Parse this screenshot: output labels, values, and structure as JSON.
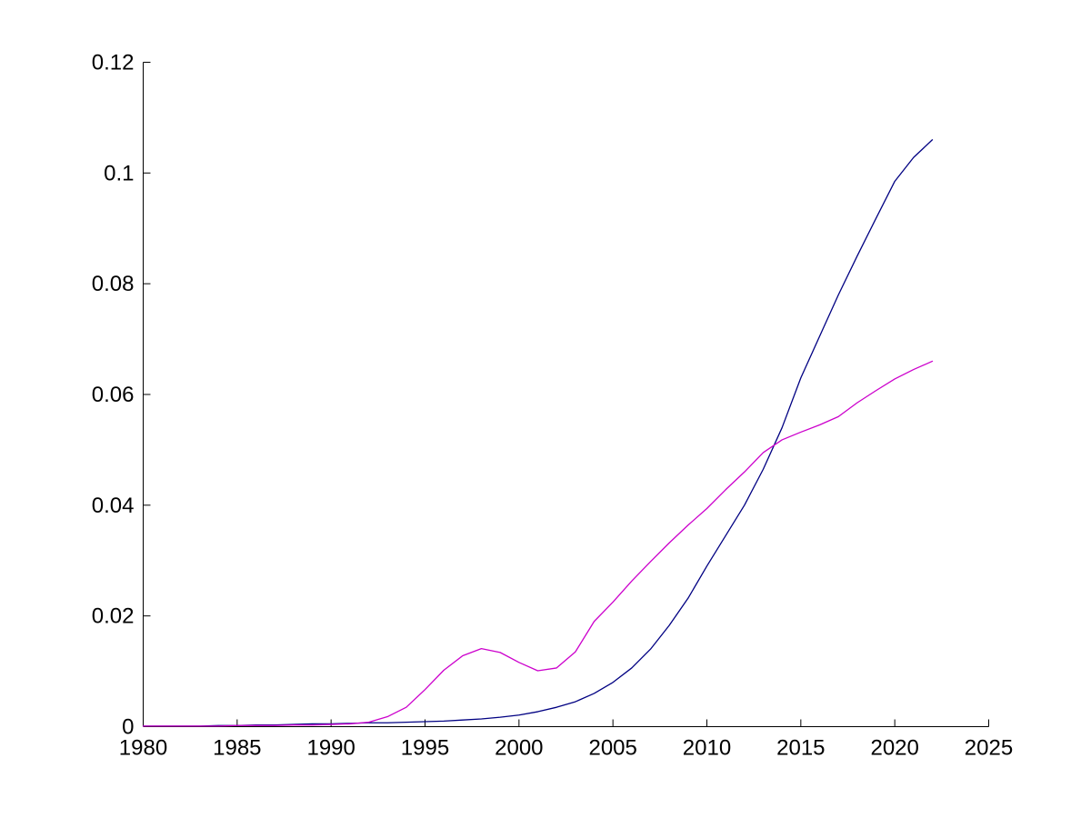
{
  "figure": {
    "background": "#ffffff"
  },
  "chart_data": {
    "type": "line",
    "title": "",
    "xlabel": "",
    "ylabel": "",
    "xlim": [
      1980,
      2025
    ],
    "ylim": [
      0,
      0.12
    ],
    "grid": false,
    "legend_position": "none",
    "axis_color": "#000000",
    "axis_style": "L-shaped, inward ticks, no box",
    "x_ticks": [
      1980,
      1985,
      1990,
      1995,
      2000,
      2005,
      2010,
      2015,
      2020,
      2025
    ],
    "x_tick_labels": [
      "1980",
      "1985",
      "1990",
      "1995",
      "2000",
      "2005",
      "2010",
      "2015",
      "2020",
      "2025"
    ],
    "y_ticks": [
      0,
      0.02,
      0.04,
      0.06,
      0.08,
      0.1,
      0.12
    ],
    "y_tick_labels": [
      "0",
      "0.02",
      "0.04",
      "0.06",
      "0.08",
      "0.1",
      "0.12"
    ],
    "x": [
      1980,
      1981,
      1982,
      1983,
      1984,
      1985,
      1986,
      1987,
      1988,
      1989,
      1990,
      1991,
      1992,
      1993,
      1994,
      1995,
      1996,
      1997,
      1998,
      1999,
      2000,
      2001,
      2002,
      2003,
      2004,
      2005,
      2006,
      2007,
      2008,
      2009,
      2010,
      2011,
      2012,
      2013,
      2014,
      2015,
      2016,
      2017,
      2018,
      2019,
      2020,
      2021,
      2022
    ],
    "series": [
      {
        "name": "series-1-dark-blue",
        "color": "#000082",
        "values": [
          0.0001,
          0.0001,
          0.0001,
          0.0001,
          0.0002,
          0.0002,
          0.0003,
          0.0003,
          0.0004,
          0.0005,
          0.0005,
          0.0006,
          0.0007,
          0.0007,
          0.0008,
          0.0009,
          0.001,
          0.0012,
          0.0014,
          0.0017,
          0.0021,
          0.0027,
          0.0035,
          0.0045,
          0.006,
          0.008,
          0.0106,
          0.014,
          0.0183,
          0.0232,
          0.029,
          0.0345,
          0.04,
          0.0465,
          0.054,
          0.063,
          0.0705,
          0.078,
          0.085,
          0.0918,
          0.0985,
          0.1028,
          0.106
        ]
      },
      {
        "name": "series-2-magenta",
        "color": "#CC00CC",
        "values": [
          0.0001,
          0.0001,
          0.0001,
          0.0001,
          0.0001,
          0.0002,
          0.0002,
          0.0002,
          0.0003,
          0.0003,
          0.0004,
          0.0005,
          0.0008,
          0.0018,
          0.0035,
          0.0067,
          0.0102,
          0.0128,
          0.0141,
          0.0134,
          0.0116,
          0.0101,
          0.0106,
          0.0135,
          0.019,
          0.0225,
          0.0263,
          0.0298,
          0.0332,
          0.0364,
          0.0394,
          0.0428,
          0.046,
          0.0495,
          0.0518,
          0.0532,
          0.0545,
          0.056,
          0.0585,
          0.0607,
          0.0628,
          0.0645,
          0.066
        ]
      }
    ]
  }
}
